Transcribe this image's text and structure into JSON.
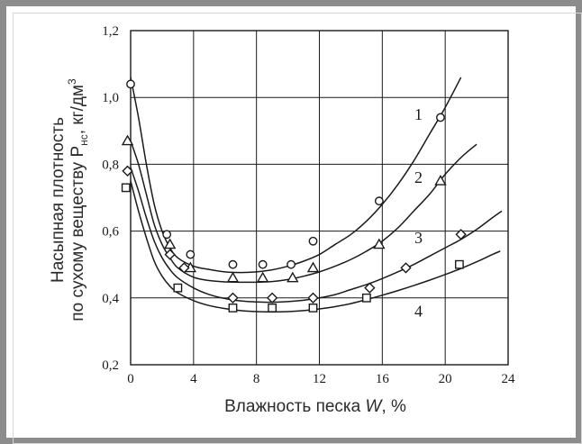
{
  "chart_data": {
    "type": "scatter",
    "title": "",
    "xlabel_main": "Влажность песка ",
    "xlabel_var": "W",
    "xlabel_unit": ", %",
    "ylabel_line1": "Насыпная плотность",
    "ylabel_line2_prefix": "по сухому веществу P",
    "ylabel_line2_sub": "нс",
    "ylabel_line2_unit": ", кг/дм",
    "ylabel_line2_sup": "3",
    "xlim": [
      0,
      24
    ],
    "ylim": [
      0.2,
      1.2
    ],
    "x_ticks": [
      0,
      4,
      8,
      12,
      16,
      20,
      24
    ],
    "y_ticks": [
      0.2,
      0.4,
      0.6,
      0.8,
      1.0,
      1.2
    ],
    "x_tick_labels": [
      "0",
      "4",
      "8",
      "12",
      "16",
      "20",
      "24"
    ],
    "y_tick_labels": [
      "0,2",
      "0,4",
      "0,6",
      "0,8",
      "1,0",
      "1,2"
    ],
    "grid": true,
    "series": [
      {
        "label": "1",
        "marker": "circle",
        "points": [
          [
            0.0,
            1.04
          ],
          [
            2.3,
            0.59
          ],
          [
            3.8,
            0.53
          ],
          [
            6.5,
            0.5
          ],
          [
            8.4,
            0.5
          ],
          [
            10.2,
            0.5
          ],
          [
            11.6,
            0.57
          ],
          [
            15.8,
            0.69
          ],
          [
            19.7,
            0.94
          ]
        ],
        "curve": [
          [
            0.0,
            1.06
          ],
          [
            0.5,
            0.94
          ],
          [
            1.0,
            0.8
          ],
          [
            1.5,
            0.68
          ],
          [
            2.0,
            0.6
          ],
          [
            2.5,
            0.55
          ],
          [
            3.0,
            0.52
          ],
          [
            4.0,
            0.495
          ],
          [
            5.0,
            0.485
          ],
          [
            6.0,
            0.478
          ],
          [
            7.0,
            0.476
          ],
          [
            8.0,
            0.478
          ],
          [
            9.0,
            0.484
          ],
          [
            10.0,
            0.495
          ],
          [
            11.0,
            0.51
          ],
          [
            12.0,
            0.53
          ],
          [
            13.0,
            0.56
          ],
          [
            14.0,
            0.59
          ],
          [
            15.0,
            0.63
          ],
          [
            16.0,
            0.68
          ],
          [
            17.0,
            0.74
          ],
          [
            18.0,
            0.81
          ],
          [
            19.0,
            0.89
          ],
          [
            20.0,
            0.97
          ],
          [
            21.0,
            1.06
          ]
        ]
      },
      {
        "label": "2",
        "marker": "triangle",
        "points": [
          [
            -0.2,
            0.87
          ],
          [
            2.5,
            0.56
          ],
          [
            3.8,
            0.49
          ],
          [
            6.5,
            0.46
          ],
          [
            8.4,
            0.46
          ],
          [
            10.3,
            0.46
          ],
          [
            11.6,
            0.49
          ],
          [
            15.8,
            0.56
          ],
          [
            19.7,
            0.75
          ]
        ],
        "curve": [
          [
            0.0,
            0.87
          ],
          [
            0.5,
            0.8
          ],
          [
            1.0,
            0.71
          ],
          [
            1.5,
            0.62
          ],
          [
            2.0,
            0.56
          ],
          [
            2.5,
            0.52
          ],
          [
            3.0,
            0.49
          ],
          [
            4.0,
            0.462
          ],
          [
            5.0,
            0.452
          ],
          [
            6.0,
            0.448
          ],
          [
            7.0,
            0.447
          ],
          [
            8.0,
            0.447
          ],
          [
            9.0,
            0.449
          ],
          [
            10.0,
            0.455
          ],
          [
            11.0,
            0.465
          ],
          [
            12.0,
            0.478
          ],
          [
            13.0,
            0.495
          ],
          [
            14.0,
            0.515
          ],
          [
            15.0,
            0.54
          ],
          [
            16.0,
            0.57
          ],
          [
            17.0,
            0.61
          ],
          [
            18.0,
            0.66
          ],
          [
            19.0,
            0.71
          ],
          [
            20.0,
            0.77
          ],
          [
            21.0,
            0.82
          ],
          [
            22.0,
            0.86
          ]
        ]
      },
      {
        "label": "3",
        "marker": "diamond",
        "points": [
          [
            -0.2,
            0.78
          ],
          [
            2.5,
            0.53
          ],
          [
            3.4,
            0.49
          ],
          [
            6.5,
            0.4
          ],
          [
            9.0,
            0.4
          ],
          [
            11.6,
            0.4
          ],
          [
            15.2,
            0.43
          ],
          [
            17.5,
            0.49
          ],
          [
            21.0,
            0.59
          ]
        ],
        "curve": [
          [
            0.0,
            0.79
          ],
          [
            0.5,
            0.72
          ],
          [
            1.0,
            0.64
          ],
          [
            1.5,
            0.57
          ],
          [
            2.0,
            0.52
          ],
          [
            2.5,
            0.485
          ],
          [
            3.0,
            0.46
          ],
          [
            4.0,
            0.43
          ],
          [
            5.0,
            0.41
          ],
          [
            6.0,
            0.398
          ],
          [
            7.0,
            0.391
          ],
          [
            8.0,
            0.388
          ],
          [
            9.0,
            0.387
          ],
          [
            10.0,
            0.389
          ],
          [
            11.0,
            0.393
          ],
          [
            12.0,
            0.4
          ],
          [
            13.0,
            0.41
          ],
          [
            14.0,
            0.425
          ],
          [
            15.0,
            0.44
          ],
          [
            16.0,
            0.458
          ],
          [
            17.0,
            0.478
          ],
          [
            18.0,
            0.5
          ],
          [
            19.0,
            0.525
          ],
          [
            20.0,
            0.55
          ],
          [
            21.0,
            0.575
          ],
          [
            22.0,
            0.605
          ],
          [
            23.0,
            0.64
          ],
          [
            23.6,
            0.66
          ]
        ]
      },
      {
        "label": "4",
        "marker": "square",
        "points": [
          [
            -0.3,
            0.73
          ],
          [
            3.0,
            0.43
          ],
          [
            6.5,
            0.37
          ],
          [
            9.0,
            0.37
          ],
          [
            11.6,
            0.37
          ],
          [
            15.0,
            0.4
          ],
          [
            20.9,
            0.5
          ]
        ],
        "curve": [
          [
            0.0,
            0.75
          ],
          [
            0.5,
            0.66
          ],
          [
            1.0,
            0.58
          ],
          [
            1.5,
            0.51
          ],
          [
            2.0,
            0.465
          ],
          [
            2.5,
            0.435
          ],
          [
            3.0,
            0.415
          ],
          [
            4.0,
            0.392
          ],
          [
            5.0,
            0.377
          ],
          [
            6.0,
            0.368
          ],
          [
            7.0,
            0.362
          ],
          [
            8.0,
            0.359
          ],
          [
            9.0,
            0.358
          ],
          [
            10.0,
            0.359
          ],
          [
            11.0,
            0.362
          ],
          [
            12.0,
            0.367
          ],
          [
            13.0,
            0.374
          ],
          [
            14.0,
            0.383
          ],
          [
            15.0,
            0.395
          ],
          [
            16.0,
            0.408
          ],
          [
            17.0,
            0.422
          ],
          [
            18.0,
            0.437
          ],
          [
            19.0,
            0.453
          ],
          [
            20.0,
            0.47
          ],
          [
            21.0,
            0.488
          ],
          [
            22.0,
            0.508
          ],
          [
            23.0,
            0.53
          ],
          [
            23.5,
            0.54
          ]
        ]
      }
    ],
    "curve_labels": [
      {
        "text": "1",
        "x": 18.3,
        "y": 0.95
      },
      {
        "text": "2",
        "x": 18.3,
        "y": 0.76
      },
      {
        "text": "3",
        "x": 18.3,
        "y": 0.58
      },
      {
        "text": "4",
        "x": 18.3,
        "y": 0.36
      }
    ]
  }
}
